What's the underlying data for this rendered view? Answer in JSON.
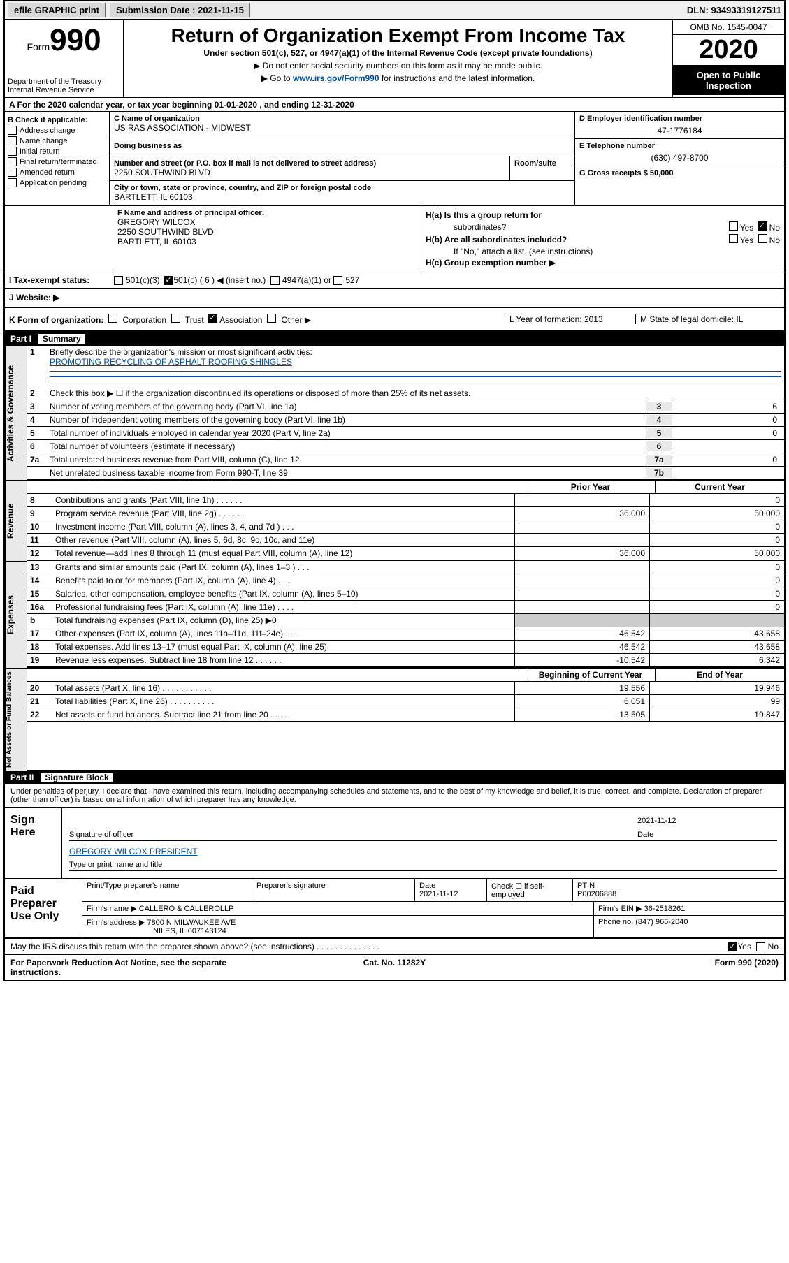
{
  "topbar": {
    "efile_label": "efile GRAPHIC print",
    "submission_label": "Submission Date : 2021-11-15",
    "dln_label": "DLN: 93493319127511"
  },
  "header": {
    "form_prefix": "Form",
    "form_number": "990",
    "dept1": "Department of the Treasury",
    "dept2": "Internal Revenue Service",
    "title": "Return of Organization Exempt From Income Tax",
    "subtitle": "Under section 501(c), 527, or 4947(a)(1) of the Internal Revenue Code (except private foundations)",
    "note1": "▶ Do not enter social security numbers on this form as it may be made public.",
    "note2_prefix": "▶ Go to ",
    "note2_link": "www.irs.gov/Form990",
    "note2_suffix": " for instructions and the latest information.",
    "omb": "OMB No. 1545-0047",
    "year": "2020",
    "open_public1": "Open to Public",
    "open_public2": "Inspection"
  },
  "row_a": "A For the 2020 calendar year, or tax year beginning 01-01-2020   , and ending 12-31-2020",
  "box_b": {
    "title": "B Check if applicable:",
    "items": [
      "Address change",
      "Name change",
      "Initial return",
      "Final return/terminated",
      "Amended return",
      "Application pending"
    ]
  },
  "box_c": {
    "name_label": "C Name of organization",
    "name_value": "US RAS ASSOCIATION - MIDWEST",
    "dba_label": "Doing business as",
    "street_label": "Number and street (or P.O. box if mail is not delivered to street address)",
    "street_value": "2250 SOUTHWIND BLVD",
    "room_label": "Room/suite",
    "city_label": "City or town, state or province, country, and ZIP or foreign postal code",
    "city_value": "BARTLETT, IL  60103"
  },
  "box_d": {
    "ein_label": "D Employer identification number",
    "ein_value": "47-1776184",
    "phone_label": "E Telephone number",
    "phone_value": "(630) 497-8700",
    "gross_label": "G Gross receipts $ 50,000"
  },
  "box_f": {
    "label": "F Name and address of principal officer:",
    "name": "GREGORY WILCOX",
    "street": "2250 SOUTHWIND BLVD",
    "city": "BARTLETT, IL  60103"
  },
  "box_h": {
    "ha_label": "H(a)  Is this a group return for",
    "ha_label2": "subordinates?",
    "hb_label": "H(b)  Are all subordinates included?",
    "hb_note": "If \"No,\" attach a list. (see instructions)",
    "hc_label": "H(c)  Group exemption number ▶",
    "yes": "Yes",
    "no": "No"
  },
  "row_i": {
    "label": "I    Tax-exempt status:",
    "opt1": "501(c)(3)",
    "opt2": "501(c) ( 6 ) ◀ (insert no.)",
    "opt3": "4947(a)(1) or",
    "opt4": "527"
  },
  "row_j": {
    "label": "J    Website: ▶"
  },
  "row_klm": {
    "k_label": "K Form of organization:",
    "k_corp": "Corporation",
    "k_trust": "Trust",
    "k_assoc": "Association",
    "k_other": "Other ▶",
    "l_label": "L Year of formation: 2013",
    "m_label": "M State of legal domicile: IL"
  },
  "part1": {
    "num": "Part I",
    "title": "Summary"
  },
  "activities_label": "Activities & Governance",
  "revenue_label": "Revenue",
  "expenses_label": "Expenses",
  "netassets_label": "Net Assets or Fund Balances",
  "lines": {
    "l1_num": "1",
    "l1_text": "Briefly describe the organization's mission or most significant activities:",
    "l1_value": "PROMOTING RECYCLING OF ASPHALT ROOFING SHINGLES",
    "l2_num": "2",
    "l2_text": "Check this box ▶ ☐  if the organization discontinued its operations or disposed of more than 25% of its net assets.",
    "l3_num": "3",
    "l3_text": "Number of voting members of the governing body (Part VI, line 1a)",
    "l3_box": "3",
    "l3_val": "6",
    "l4_num": "4",
    "l4_text": "Number of independent voting members of the governing body (Part VI, line 1b)",
    "l4_box": "4",
    "l4_val": "0",
    "l5_num": "5",
    "l5_text": "Total number of individuals employed in calendar year 2020 (Part V, line 2a)",
    "l5_box": "5",
    "l5_val": "0",
    "l6_num": "6",
    "l6_text": "Total number of volunteers (estimate if necessary)",
    "l6_box": "6",
    "l6_val": "",
    "l7a_num": "7a",
    "l7a_text": "Total unrelated business revenue from Part VIII, column (C), line 12",
    "l7a_box": "7a",
    "l7a_val": "0",
    "l7b_text": "Net unrelated business taxable income from Form 990-T, line 39",
    "l7b_box": "7b",
    "l7b_val": ""
  },
  "two_col": {
    "prior_header": "Prior Year",
    "current_header": "Current Year",
    "begin_header": "Beginning of Current Year",
    "end_header": "End of Year",
    "rows_rev": [
      {
        "n": "8",
        "t": "Contributions and grants (Part VIII, line 1h) . . . . . .",
        "p": "",
        "c": "0"
      },
      {
        "n": "9",
        "t": "Program service revenue (Part VIII, line 2g) . . . . . .",
        "p": "36,000",
        "c": "50,000"
      },
      {
        "n": "10",
        "t": "Investment income (Part VIII, column (A), lines 3, 4, and 7d ) . . .",
        "p": "",
        "c": "0"
      },
      {
        "n": "11",
        "t": "Other revenue (Part VIII, column (A), lines 5, 6d, 8c, 9c, 10c, and 11e)",
        "p": "",
        "c": "0"
      },
      {
        "n": "12",
        "t": "Total revenue—add lines 8 through 11 (must equal Part VIII, column (A), line 12)",
        "p": "36,000",
        "c": "50,000"
      }
    ],
    "rows_exp": [
      {
        "n": "13",
        "t": "Grants and similar amounts paid (Part IX, column (A), lines 1–3 ) . . .",
        "p": "",
        "c": "0"
      },
      {
        "n": "14",
        "t": "Benefits paid to or for members (Part IX, column (A), line 4) . . .",
        "p": "",
        "c": "0"
      },
      {
        "n": "15",
        "t": "Salaries, other compensation, employee benefits (Part IX, column (A), lines 5–10)",
        "p": "",
        "c": "0"
      },
      {
        "n": "16a",
        "t": "Professional fundraising fees (Part IX, column (A), line 11e) . . . .",
        "p": "",
        "c": "0"
      },
      {
        "n": "b",
        "t": "Total fundraising expenses (Part IX, column (D), line 25) ▶0",
        "p": "—shade—",
        "c": "—shade—"
      },
      {
        "n": "17",
        "t": "Other expenses (Part IX, column (A), lines 11a–11d, 11f–24e) . . .",
        "p": "46,542",
        "c": "43,658"
      },
      {
        "n": "18",
        "t": "Total expenses. Add lines 13–17 (must equal Part IX, column (A), line 25)",
        "p": "46,542",
        "c": "43,658"
      },
      {
        "n": "19",
        "t": "Revenue less expenses. Subtract line 18 from line 12 . . . . . .",
        "p": "-10,542",
        "c": "6,342"
      }
    ],
    "rows_net": [
      {
        "n": "20",
        "t": "Total assets (Part X, line 16) . . . . . . . . . . .",
        "p": "19,556",
        "c": "19,946"
      },
      {
        "n": "21",
        "t": "Total liabilities (Part X, line 26) . . . . . . . . . .",
        "p": "6,051",
        "c": "99"
      },
      {
        "n": "22",
        "t": "Net assets or fund balances. Subtract line 21 from line 20 . . . .",
        "p": "13,505",
        "c": "19,847"
      }
    ]
  },
  "part2": {
    "num": "Part II",
    "title": "Signature Block"
  },
  "sig_text": "Under penalties of perjury, I declare that I have examined this return, including accompanying schedules and statements, and to the best of my knowledge and belief, it is true, correct, and complete. Declaration of preparer (other than officer) is based on all information of which preparer has any knowledge.",
  "sign": {
    "label": "Sign Here",
    "sig_of_officer": "Signature of officer",
    "date": "Date",
    "date_val": "2021-11-12",
    "name_title": "GREGORY WILCOX  PRESIDENT",
    "type_label": "Type or print name and title"
  },
  "prep": {
    "label": "Paid Preparer Use Only",
    "print_label": "Print/Type preparer's name",
    "sig_label": "Preparer's signature",
    "date_label": "Date",
    "date_val": "2021-11-12",
    "check_label": "Check ☐ if self-employed",
    "ptin_label": "PTIN",
    "ptin_val": "P00206888",
    "firm_name_label": "Firm's name    ▶",
    "firm_name_val": "CALLERO & CALLEROLLP",
    "firm_ein_label": "Firm's EIN ▶",
    "firm_ein_val": "36-2518261",
    "firm_addr_label": "Firm's address ▶",
    "firm_addr_val1": "7800 N MILWAUKEE AVE",
    "firm_addr_val2": "NILES, IL  607143124",
    "phone_label": "Phone no. (847) 966-2040"
  },
  "footer": {
    "discuss": "May the IRS discuss this return with the preparer shown above? (see instructions) . . . . . . . . . . . . . .",
    "yes": "Yes",
    "no": "No",
    "paperwork": "For Paperwork Reduction Act Notice, see the separate instructions.",
    "catno": "Cat. No. 11282Y",
    "formver": "Form 990 (2020)"
  }
}
